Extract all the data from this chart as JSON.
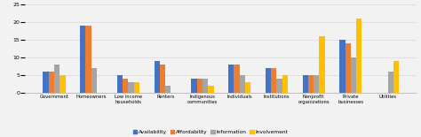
{
  "categories": [
    "Government",
    "Homeowners",
    "Low income\nhouseholds",
    "Renters",
    "Indigenous\ncommunities",
    "Individuals",
    "Institutions",
    "Nonprofit\norganizations",
    "Private\nbusinesses",
    "Utilities"
  ],
  "series": {
    "Availability": [
      6,
      19,
      5,
      9,
      4,
      8,
      7,
      5,
      15,
      0
    ],
    "Affordability": [
      6,
      19,
      4,
      8,
      4,
      8,
      7,
      5,
      14,
      0
    ],
    "Information": [
      8,
      7,
      3,
      2,
      4,
      5,
      4,
      5,
      10,
      6
    ],
    "Involvement": [
      5,
      0,
      3,
      0,
      2,
      3,
      5,
      16,
      21,
      9
    ]
  },
  "colors": {
    "Availability": "#4472C4",
    "Affordability": "#ED7D31",
    "Information": "#A5A5A5",
    "Involvement": "#FFC000"
  },
  "ylim": [
    0,
    25
  ],
  "yticks": [
    0,
    5,
    10,
    15,
    20,
    25
  ],
  "background_color": "#F2F2F2",
  "legend_labels": [
    "Availability",
    "Affordability",
    "Information",
    "Involvement"
  ]
}
